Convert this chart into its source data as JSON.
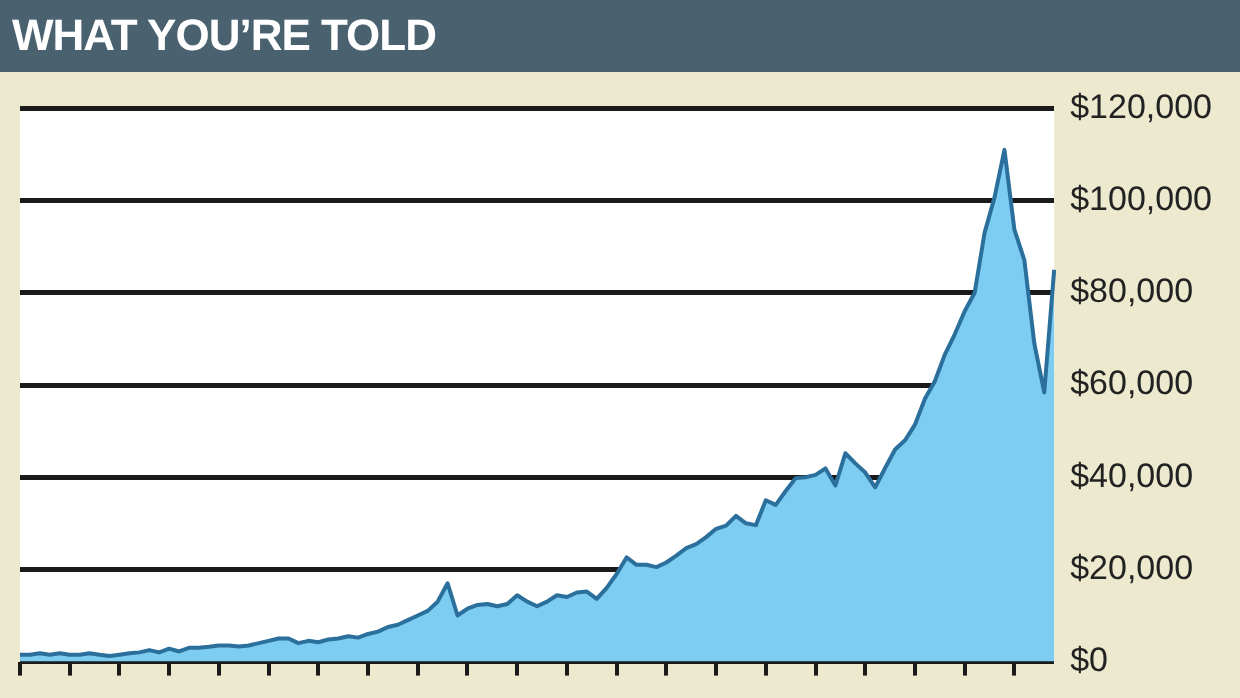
{
  "chart_data": {
    "type": "area",
    "title": "WHAT YOU’RE TOLD",
    "categories": [
      null,
      null,
      null,
      null,
      null,
      null,
      null,
      null,
      null,
      null,
      null,
      null,
      null,
      null,
      null,
      null,
      null,
      null,
      null,
      null,
      null,
      null,
      null,
      null,
      null,
      null,
      null,
      null,
      null,
      null,
      null,
      null,
      null,
      null,
      null,
      null,
      null,
      null,
      null,
      null,
      null,
      null,
      null,
      null,
      null,
      null,
      null,
      null,
      null,
      null,
      null,
      null,
      null,
      null,
      null,
      null,
      null,
      null,
      null,
      null,
      null,
      null,
      null,
      null,
      null,
      null,
      null,
      null,
      null,
      null,
      null,
      null,
      null,
      null,
      null,
      null,
      null,
      null,
      null,
      null,
      null,
      null,
      null,
      null,
      null,
      null,
      null,
      null,
      null,
      null,
      null,
      null,
      null,
      null,
      null,
      null,
      null,
      null,
      null,
      null,
      null,
      null,
      null,
      null,
      null
    ],
    "series": [
      {
        "color": "#7ccdf1",
        "values": [
          1500,
          1500,
          1800,
          1500,
          1800,
          1500,
          1500,
          1800,
          1500,
          1200,
          1500,
          1800,
          2000,
          2500,
          2000,
          2800,
          2200,
          3000,
          3000,
          3200,
          3500,
          3500,
          3300,
          3500,
          4000,
          4500,
          5000,
          5000,
          4000,
          4500,
          4200,
          4800,
          5000,
          5500,
          5200,
          6000,
          6500,
          7500,
          8000,
          9000,
          10000,
          11000,
          13000,
          17000,
          10000,
          11500,
          12300,
          12500,
          12000,
          12500,
          14400,
          13000,
          12000,
          13000,
          14400,
          14000,
          15000,
          15200,
          13600,
          16000,
          19000,
          22600,
          21000,
          21000,
          20500,
          21500,
          23000,
          24600,
          25500,
          27000,
          28800,
          29500,
          31600,
          30000,
          29600,
          35000,
          34000,
          37000,
          39800,
          40000,
          40500,
          41900,
          38200,
          45200,
          43000,
          41000,
          37800,
          42000,
          46000,
          48000,
          51400,
          57000,
          60800,
          66600,
          71000,
          76000,
          80000,
          93000,
          100700,
          111000,
          93700,
          87100,
          69000,
          58400,
          85000
        ]
      }
    ],
    "ylim": [
      0,
      120000
    ],
    "yticks": [
      {
        "value": 0,
        "label": "$0"
      },
      {
        "value": 20000,
        "label": "$20,000"
      },
      {
        "value": 40000,
        "label": "$40,000"
      },
      {
        "value": 60000,
        "label": "$60,000"
      },
      {
        "value": 80000,
        "label": "$80,000"
      },
      {
        "value": 100000,
        "label": "$100,000"
      },
      {
        "value": 120000,
        "label": "$120,000"
      }
    ],
    "grid": "y",
    "tick_labels": "y"
  }
}
